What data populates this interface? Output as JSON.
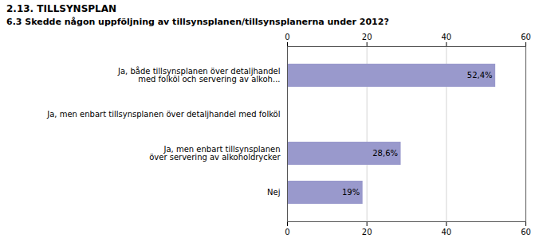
{
  "chart_data": {
    "type": "bar",
    "orientation": "horizontal",
    "title": "2.13. TILLSYNSPLAN",
    "subtitle": "6.3 Skedde någon uppföljning av tillsynsplanen/tillsynsplanerna under 2012?",
    "categories": [
      "Nej",
      "Ja, men enbart tillsynsplanen\növer servering av alkoholdrycker",
      "Ja, men enbart tillsynsplanen över detaljhandel med folköl",
      "Ja, både tillsynsplanen över detaljhandel\nmed folköl och servering av alkoh..."
    ],
    "values": [
      19.0,
      28.6,
      0.0,
      52.4
    ],
    "value_labels": [
      "19%",
      "28,6%",
      null,
      "52,4%"
    ],
    "color": "#9999cc",
    "xlim": [
      0,
      60
    ],
    "xticks": [
      0,
      20,
      40,
      60
    ],
    "grid": true,
    "data_labels": true
  }
}
